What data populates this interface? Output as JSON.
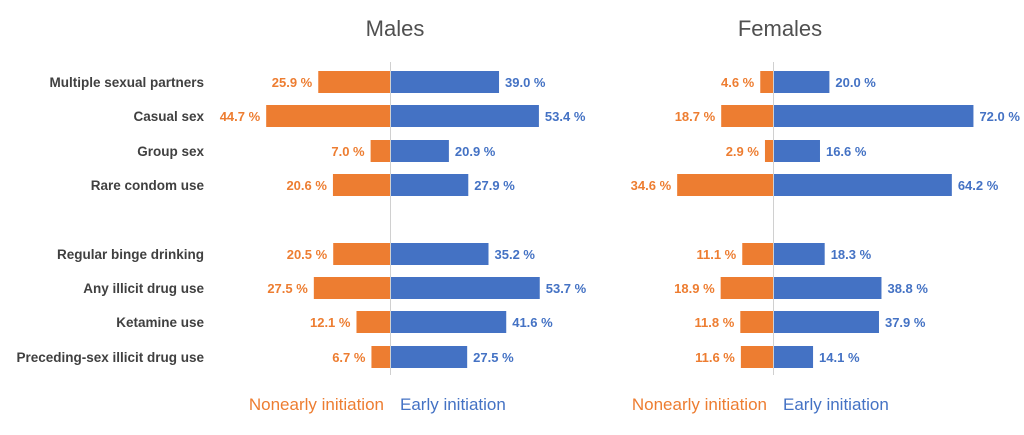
{
  "chart_data": {
    "type": "bar",
    "orientation": "horizontal-diverging",
    "colors": {
      "nonearly": "#ED7D31",
      "early": "#4472C4"
    },
    "legend": {
      "nonearly": "Nonearly initiation",
      "early": "Early initiation"
    },
    "value_suffix": " %",
    "categories": [
      "Multiple sexual partners",
      "Casual sex",
      "Group sex",
      "Rare condom use",
      "Regular binge drinking",
      "Any illicit drug use",
      "Ketamine use",
      "Preceding-sex illicit drug use"
    ],
    "panels": [
      {
        "title": "Males",
        "series": [
          {
            "name": "Nonearly initiation",
            "values": [
              25.9,
              44.7,
              7.0,
              20.6,
              20.5,
              27.5,
              12.1,
              6.7
            ]
          },
          {
            "name": "Early initiation",
            "values": [
              39.0,
              53.4,
              20.9,
              27.9,
              35.2,
              53.7,
              41.6,
              27.5
            ]
          }
        ]
      },
      {
        "title": "Females",
        "series": [
          {
            "name": "Nonearly initiation",
            "values": [
              4.6,
              18.7,
              2.9,
              34.6,
              11.1,
              18.9,
              11.8,
              11.6
            ]
          },
          {
            "name": "Early initiation",
            "values": [
              20.0,
              72.0,
              16.6,
              64.2,
              18.3,
              38.8,
              37.9,
              14.1
            ]
          }
        ]
      }
    ]
  }
}
